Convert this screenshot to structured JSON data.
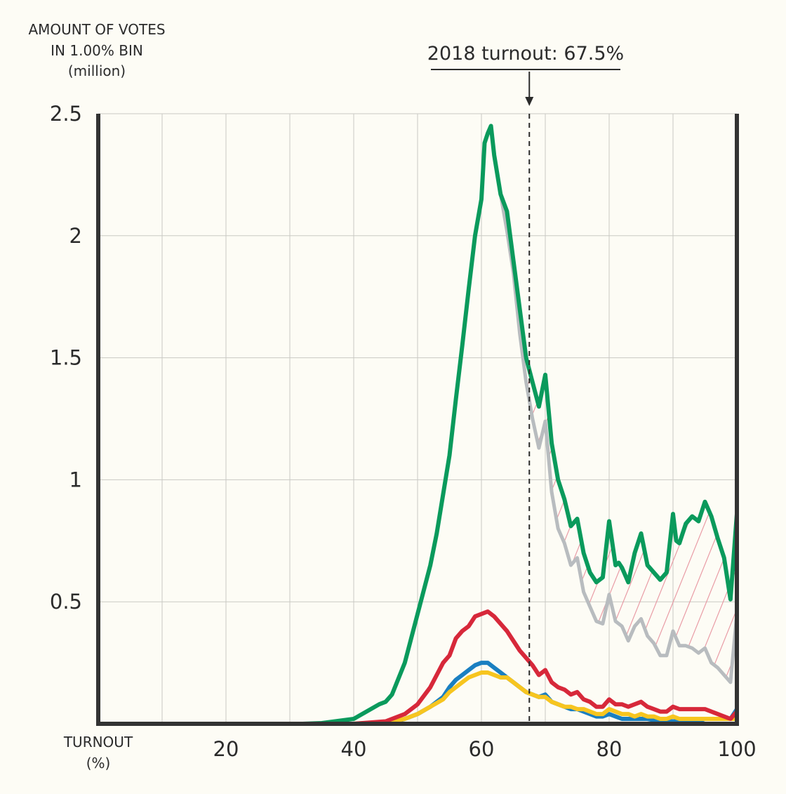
{
  "chart_data": {
    "type": "line",
    "ylabel": [
      "AMOUNT OF VOTES",
      "IN 1.00% BIN",
      "(million)"
    ],
    "xlabel": [
      "TURNOUT",
      "(%)"
    ],
    "xlim": [
      0,
      100
    ],
    "ylim": [
      0,
      2.5
    ],
    "xticks": [
      "20",
      "40",
      "60",
      "80",
      "100"
    ],
    "xtick_values": [
      20,
      40,
      60,
      80,
      100
    ],
    "yticks": [
      "0.5",
      "1",
      "1.5",
      "2",
      "2.5"
    ],
    "ytick_values": [
      0.5,
      1,
      1.5,
      2,
      2.5
    ],
    "grid": true,
    "annotation": {
      "text": "2018 turnout: 67.5%",
      "x": 67.5
    },
    "series": [
      {
        "color": "#0a9a5c",
        "points": [
          [
            32,
            0
          ],
          [
            35,
            0.003
          ],
          [
            40,
            0.02
          ],
          [
            44,
            0.08
          ],
          [
            45,
            0.09
          ],
          [
            46,
            0.12
          ],
          [
            48,
            0.25
          ],
          [
            50,
            0.45
          ],
          [
            52,
            0.65
          ],
          [
            53,
            0.78
          ],
          [
            55,
            1.1
          ],
          [
            56,
            1.33
          ],
          [
            57,
            1.55
          ],
          [
            58,
            1.78
          ],
          [
            59,
            2.0
          ],
          [
            60,
            2.15
          ],
          [
            60.5,
            2.38
          ],
          [
            61,
            2.42
          ],
          [
            61.5,
            2.45
          ],
          [
            62,
            2.33
          ],
          [
            63,
            2.17
          ],
          [
            64,
            2.1
          ],
          [
            65,
            1.9
          ],
          [
            66,
            1.7
          ],
          [
            67,
            1.5
          ],
          [
            68,
            1.4
          ],
          [
            69,
            1.3
          ],
          [
            70,
            1.43
          ],
          [
            71,
            1.15
          ],
          [
            72,
            1.0
          ],
          [
            73,
            0.92
          ],
          [
            74,
            0.81
          ],
          [
            75,
            0.84
          ],
          [
            76,
            0.7
          ],
          [
            77,
            0.62
          ],
          [
            78,
            0.58
          ],
          [
            79,
            0.6
          ],
          [
            80,
            0.83
          ],
          [
            81,
            0.65
          ],
          [
            81.5,
            0.66
          ],
          [
            82,
            0.64
          ],
          [
            83,
            0.58
          ],
          [
            84,
            0.7
          ],
          [
            85,
            0.78
          ],
          [
            86,
            0.65
          ],
          [
            87,
            0.62
          ],
          [
            88,
            0.59
          ],
          [
            89,
            0.62
          ],
          [
            90,
            0.86
          ],
          [
            90.5,
            0.75
          ],
          [
            91,
            0.74
          ],
          [
            92,
            0.82
          ],
          [
            93,
            0.85
          ],
          [
            94,
            0.83
          ],
          [
            95,
            0.91
          ],
          [
            96,
            0.85
          ],
          [
            97,
            0.76
          ],
          [
            98,
            0.68
          ],
          [
            99,
            0.51
          ],
          [
            100,
            0.86
          ]
        ]
      },
      {
        "color": "#b8bcbf",
        "points": [
          [
            63,
            2.17
          ],
          [
            64,
            2.02
          ],
          [
            65,
            1.85
          ],
          [
            66,
            1.6
          ],
          [
            67,
            1.4
          ],
          [
            68,
            1.25
          ],
          [
            69,
            1.13
          ],
          [
            70,
            1.24
          ],
          [
            71,
            0.95
          ],
          [
            72,
            0.8
          ],
          [
            73,
            0.74
          ],
          [
            74,
            0.65
          ],
          [
            75,
            0.68
          ],
          [
            76,
            0.54
          ],
          [
            77,
            0.48
          ],
          [
            78,
            0.42
          ],
          [
            79,
            0.41
          ],
          [
            80,
            0.53
          ],
          [
            81,
            0.42
          ],
          [
            82,
            0.4
          ],
          [
            83,
            0.34
          ],
          [
            84,
            0.4
          ],
          [
            85,
            0.43
          ],
          [
            86,
            0.36
          ],
          [
            87,
            0.33
          ],
          [
            88,
            0.28
          ],
          [
            89,
            0.28
          ],
          [
            90,
            0.38
          ],
          [
            91,
            0.32
          ],
          [
            92,
            0.32
          ],
          [
            93,
            0.31
          ],
          [
            94,
            0.29
          ],
          [
            95,
            0.31
          ],
          [
            96,
            0.25
          ],
          [
            97,
            0.23
          ],
          [
            98,
            0.2
          ],
          [
            99,
            0.17
          ],
          [
            100,
            0.45
          ]
        ]
      },
      {
        "color": "#d7283a",
        "points": [
          [
            40,
            0
          ],
          [
            45,
            0.01
          ],
          [
            48,
            0.04
          ],
          [
            50,
            0.08
          ],
          [
            52,
            0.15
          ],
          [
            54,
            0.25
          ],
          [
            55,
            0.28
          ],
          [
            56,
            0.35
          ],
          [
            57,
            0.38
          ],
          [
            58,
            0.4
          ],
          [
            59,
            0.44
          ],
          [
            60,
            0.45
          ],
          [
            61,
            0.46
          ],
          [
            62,
            0.44
          ],
          [
            63,
            0.41
          ],
          [
            64,
            0.38
          ],
          [
            65,
            0.34
          ],
          [
            66,
            0.3
          ],
          [
            67,
            0.27
          ],
          [
            68,
            0.24
          ],
          [
            69,
            0.2
          ],
          [
            70,
            0.22
          ],
          [
            71,
            0.17
          ],
          [
            72,
            0.15
          ],
          [
            73,
            0.14
          ],
          [
            74,
            0.12
          ],
          [
            75,
            0.13
          ],
          [
            76,
            0.1
          ],
          [
            77,
            0.09
          ],
          [
            78,
            0.07
          ],
          [
            79,
            0.07
          ],
          [
            80,
            0.1
          ],
          [
            81,
            0.08
          ],
          [
            82,
            0.08
          ],
          [
            83,
            0.07
          ],
          [
            84,
            0.08
          ],
          [
            85,
            0.09
          ],
          [
            86,
            0.07
          ],
          [
            87,
            0.06
          ],
          [
            88,
            0.05
          ],
          [
            89,
            0.05
          ],
          [
            90,
            0.07
          ],
          [
            91,
            0.06
          ],
          [
            92,
            0.06
          ],
          [
            93,
            0.06
          ],
          [
            94,
            0.06
          ],
          [
            95,
            0.06
          ],
          [
            96,
            0.05
          ],
          [
            97,
            0.04
          ],
          [
            98,
            0.03
          ],
          [
            99,
            0.02
          ],
          [
            100,
            0.05
          ]
        ]
      },
      {
        "color": "#1a7fc1",
        "points": [
          [
            40,
            0
          ],
          [
            46,
            0.005
          ],
          [
            48,
            0.02
          ],
          [
            50,
            0.04
          ],
          [
            52,
            0.07
          ],
          [
            54,
            0.11
          ],
          [
            55,
            0.15
          ],
          [
            56,
            0.18
          ],
          [
            57,
            0.2
          ],
          [
            58,
            0.22
          ],
          [
            59,
            0.24
          ],
          [
            60,
            0.25
          ],
          [
            61,
            0.25
          ],
          [
            62,
            0.23
          ],
          [
            63,
            0.21
          ],
          [
            64,
            0.19
          ],
          [
            65,
            0.17
          ],
          [
            66,
            0.15
          ],
          [
            67,
            0.13
          ],
          [
            68,
            0.12
          ],
          [
            69,
            0.11
          ],
          [
            70,
            0.12
          ],
          [
            71,
            0.09
          ],
          [
            72,
            0.08
          ],
          [
            73,
            0.07
          ],
          [
            74,
            0.06
          ],
          [
            75,
            0.06
          ],
          [
            76,
            0.05
          ],
          [
            77,
            0.04
          ],
          [
            78,
            0.03
          ],
          [
            79,
            0.03
          ],
          [
            80,
            0.04
          ],
          [
            81,
            0.03
          ],
          [
            82,
            0.02
          ],
          [
            83,
            0.02
          ],
          [
            84,
            0.02
          ],
          [
            85,
            0.02
          ],
          [
            86,
            0.02
          ],
          [
            87,
            0.015
          ],
          [
            88,
            0.01
          ],
          [
            89,
            0.01
          ],
          [
            90,
            0.01
          ],
          [
            91,
            0.01
          ],
          [
            92,
            0.01
          ],
          [
            93,
            0.01
          ],
          [
            94,
            0.01
          ],
          [
            95,
            0.02
          ],
          [
            96,
            0.02
          ],
          [
            97,
            0.02
          ],
          [
            98,
            0.02
          ],
          [
            99,
            0.02
          ],
          [
            100,
            0.06
          ]
        ]
      },
      {
        "color": "#f7c51f",
        "points": [
          [
            40,
            0
          ],
          [
            46,
            0.01
          ],
          [
            48,
            0.02
          ],
          [
            50,
            0.04
          ],
          [
            52,
            0.07
          ],
          [
            54,
            0.1
          ],
          [
            55,
            0.13
          ],
          [
            56,
            0.15
          ],
          [
            57,
            0.17
          ],
          [
            58,
            0.19
          ],
          [
            59,
            0.2
          ],
          [
            60,
            0.21
          ],
          [
            61,
            0.21
          ],
          [
            62,
            0.2
          ],
          [
            63,
            0.19
          ],
          [
            64,
            0.19
          ],
          [
            65,
            0.17
          ],
          [
            66,
            0.15
          ],
          [
            67,
            0.13
          ],
          [
            68,
            0.12
          ],
          [
            69,
            0.11
          ],
          [
            70,
            0.11
          ],
          [
            71,
            0.09
          ],
          [
            72,
            0.08
          ],
          [
            73,
            0.07
          ],
          [
            74,
            0.07
          ],
          [
            75,
            0.06
          ],
          [
            76,
            0.06
          ],
          [
            77,
            0.05
          ],
          [
            78,
            0.04
          ],
          [
            79,
            0.04
          ],
          [
            80,
            0.06
          ],
          [
            81,
            0.05
          ],
          [
            82,
            0.04
          ],
          [
            83,
            0.04
          ],
          [
            84,
            0.03
          ],
          [
            85,
            0.04
          ],
          [
            86,
            0.03
          ],
          [
            87,
            0.03
          ],
          [
            88,
            0.02
          ],
          [
            89,
            0.02
          ],
          [
            90,
            0.03
          ],
          [
            91,
            0.02
          ],
          [
            92,
            0.02
          ],
          [
            93,
            0.02
          ],
          [
            94,
            0.02
          ],
          [
            95,
            0.02
          ],
          [
            96,
            0.02
          ],
          [
            97,
            0.02
          ],
          [
            98,
            0.02
          ],
          [
            99,
            0.02
          ],
          [
            100,
            0.02
          ]
        ]
      }
    ]
  }
}
